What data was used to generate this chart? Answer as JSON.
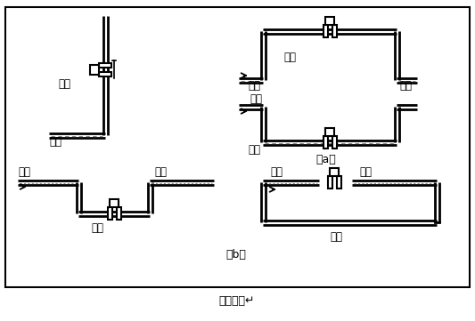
{
  "title": "图（四）↵",
  "label_a": "（a）",
  "label_b": "（b）",
  "text_correct": "正确",
  "text_wrong": "错误",
  "text_liquid": "液体",
  "text_bubble": "气泡",
  "lc": "#000000",
  "bg": "#ffffff"
}
